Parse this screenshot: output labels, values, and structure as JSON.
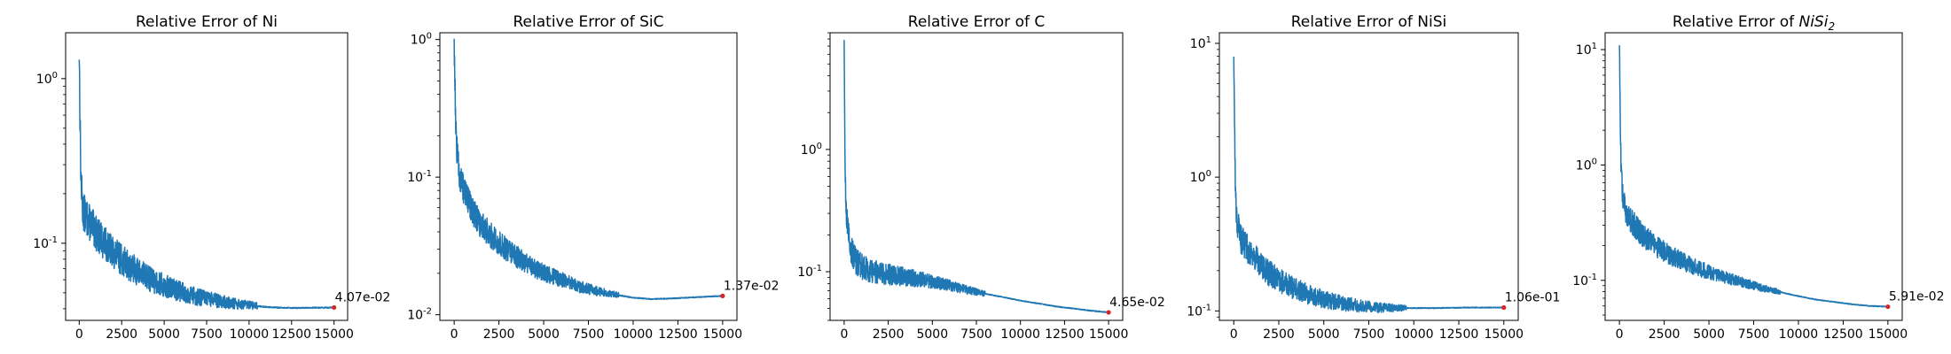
{
  "colors": {
    "series": "#1f77b4",
    "marker": "#d62728",
    "axes": "#000000"
  },
  "chart_data": [
    {
      "type": "line",
      "title": "Relative Error of Ni",
      "title_parts": [
        {
          "text": "Relative Error of Ni"
        }
      ],
      "xlim": [
        -800,
        15800
      ],
      "ylim": [
        0.034,
        1.9
      ],
      "yscale": "log",
      "xticks": [
        0,
        2500,
        5000,
        7500,
        10000,
        12500,
        15000
      ],
      "xtick_labels": [
        "0",
        "2500",
        "5000",
        "7500",
        "10000",
        "12500",
        "15000"
      ],
      "yticks": [
        0.1,
        1
      ],
      "ytick_labels": [
        "10^-1",
        "10^0"
      ],
      "curve": {
        "x": [
          0,
          50,
          100,
          200,
          400,
          700,
          1000,
          1500,
          2000,
          3000,
          4000,
          5000,
          6000,
          7000,
          8000,
          9000,
          10000,
          11000,
          12000,
          13000,
          14000,
          15000
        ],
        "y": [
          1.5,
          0.55,
          0.25,
          0.16,
          0.145,
          0.13,
          0.115,
          0.1,
          0.088,
          0.072,
          0.062,
          0.055,
          0.051,
          0.047,
          0.045,
          0.043,
          0.042,
          0.041,
          0.0405,
          0.0405,
          0.0406,
          0.0407
        ]
      },
      "noise_end": 10500,
      "final_point": {
        "x": 15000,
        "y": 0.0407,
        "label": "4.07e-02"
      }
    },
    {
      "type": "line",
      "title": "Relative Error of SiC",
      "title_parts": [
        {
          "text": "Relative Error of SiC"
        }
      ],
      "xlim": [
        -800,
        15800
      ],
      "ylim": [
        0.0091,
        1.12
      ],
      "yscale": "log",
      "xticks": [
        0,
        2500,
        5000,
        7500,
        10000,
        12500,
        15000
      ],
      "xtick_labels": [
        "0",
        "2500",
        "5000",
        "7500",
        "10000",
        "12500",
        "15000"
      ],
      "yticks": [
        0.01,
        0.1,
        1
      ],
      "ytick_labels": [
        "10^-2",
        "10^-1",
        "10^0"
      ],
      "curve": {
        "x": [
          0,
          50,
          100,
          200,
          400,
          700,
          1000,
          1500,
          2000,
          3000,
          4000,
          5000,
          6000,
          7000,
          8000,
          9000,
          10000,
          11000,
          12000,
          13000,
          14000,
          15000
        ],
        "y": [
          0.95,
          0.45,
          0.2,
          0.13,
          0.09,
          0.07,
          0.058,
          0.045,
          0.038,
          0.029,
          0.024,
          0.02,
          0.018,
          0.016,
          0.0148,
          0.014,
          0.0133,
          0.013,
          0.0131,
          0.0133,
          0.0135,
          0.0137
        ]
      },
      "noise_end": 9200,
      "final_point": {
        "x": 15000,
        "y": 0.0137,
        "label": "1.37e-02"
      }
    },
    {
      "type": "line",
      "title": "Relative Error of C",
      "title_parts": [
        {
          "text": "Relative Error of C"
        }
      ],
      "xlim": [
        -800,
        15800
      ],
      "ylim": [
        0.04,
        9.0
      ],
      "yscale": "log",
      "xticks": [
        0,
        2500,
        5000,
        7500,
        10000,
        12500,
        15000
      ],
      "xtick_labels": [
        "0",
        "2500",
        "5000",
        "7500",
        "10000",
        "12500",
        "15000"
      ],
      "yticks": [
        0.1,
        1
      ],
      "ytick_labels": [
        "10^-1",
        "10^0"
      ],
      "curve": {
        "x": [
          0,
          50,
          100,
          200,
          400,
          700,
          1000,
          1500,
          2000,
          3000,
          4000,
          5000,
          6000,
          7000,
          8000,
          9000,
          10000,
          11000,
          12000,
          13000,
          14000,
          15000
        ],
        "y": [
          6.0,
          0.8,
          0.35,
          0.22,
          0.15,
          0.12,
          0.11,
          0.1,
          0.098,
          0.093,
          0.088,
          0.083,
          0.077,
          0.071,
          0.066,
          0.062,
          0.058,
          0.055,
          0.052,
          0.05,
          0.048,
          0.0465
        ]
      },
      "noise_end": 8000,
      "final_point": {
        "x": 15000,
        "y": 0.0465,
        "label": "4.65e-02"
      }
    },
    {
      "type": "line",
      "title": "Relative Error of NiSi",
      "title_parts": [
        {
          "text": "Relative Error of NiSi"
        }
      ],
      "xlim": [
        -800,
        15800
      ],
      "ylim": [
        0.085,
        12.0
      ],
      "yscale": "log",
      "xticks": [
        0,
        2500,
        5000,
        7500,
        10000,
        12500,
        15000
      ],
      "xtick_labels": [
        "0",
        "2500",
        "5000",
        "7500",
        "10000",
        "12500",
        "15000"
      ],
      "yticks": [
        0.1,
        1,
        10
      ],
      "ytick_labels": [
        "10^-1",
        "10^0",
        "10^1"
      ],
      "curve": {
        "x": [
          0,
          50,
          100,
          200,
          400,
          700,
          1000,
          1500,
          2000,
          3000,
          4000,
          5000,
          6000,
          7000,
          8000,
          9000,
          10000,
          11000,
          12000,
          13000,
          14000,
          15000
        ],
        "y": [
          8.5,
          2.0,
          0.7,
          0.45,
          0.35,
          0.3,
          0.27,
          0.22,
          0.19,
          0.155,
          0.135,
          0.122,
          0.114,
          0.109,
          0.106,
          0.105,
          0.105,
          0.105,
          0.1055,
          0.106,
          0.106,
          0.106
        ]
      },
      "noise_end": 9600,
      "final_point": {
        "x": 15000,
        "y": 0.106,
        "label": "1.06e-01"
      }
    },
    {
      "type": "line",
      "title": "Relative Error of NiSi₂",
      "title_parts": [
        {
          "text": "Relative Error of "
        },
        {
          "text": "NiSi",
          "italic": true
        },
        {
          "text": "2",
          "sub": true,
          "italic": true
        }
      ],
      "xlim": [
        -800,
        15800
      ],
      "ylim": [
        0.045,
        14.0
      ],
      "yscale": "log",
      "xticks": [
        0,
        2500,
        5000,
        7500,
        10000,
        12500,
        15000
      ],
      "xtick_labels": [
        "0",
        "2500",
        "5000",
        "7500",
        "10000",
        "12500",
        "15000"
      ],
      "yticks": [
        0.1,
        1,
        10
      ],
      "ytick_labels": [
        "10^-1",
        "10^0",
        "10^1"
      ],
      "curve": {
        "x": [
          0,
          50,
          100,
          200,
          400,
          700,
          1000,
          1500,
          2000,
          3000,
          4000,
          5000,
          6000,
          7000,
          8000,
          9000,
          10000,
          11000,
          12000,
          13000,
          14000,
          15000
        ],
        "y": [
          9.5,
          2.0,
          0.8,
          0.5,
          0.38,
          0.32,
          0.28,
          0.23,
          0.2,
          0.16,
          0.135,
          0.118,
          0.105,
          0.095,
          0.086,
          0.079,
          0.073,
          0.068,
          0.065,
          0.062,
          0.06,
          0.0591
        ]
      },
      "noise_end": 9000,
      "final_point": {
        "x": 15000,
        "y": 0.0591,
        "label": "5.91e-02"
      }
    }
  ]
}
